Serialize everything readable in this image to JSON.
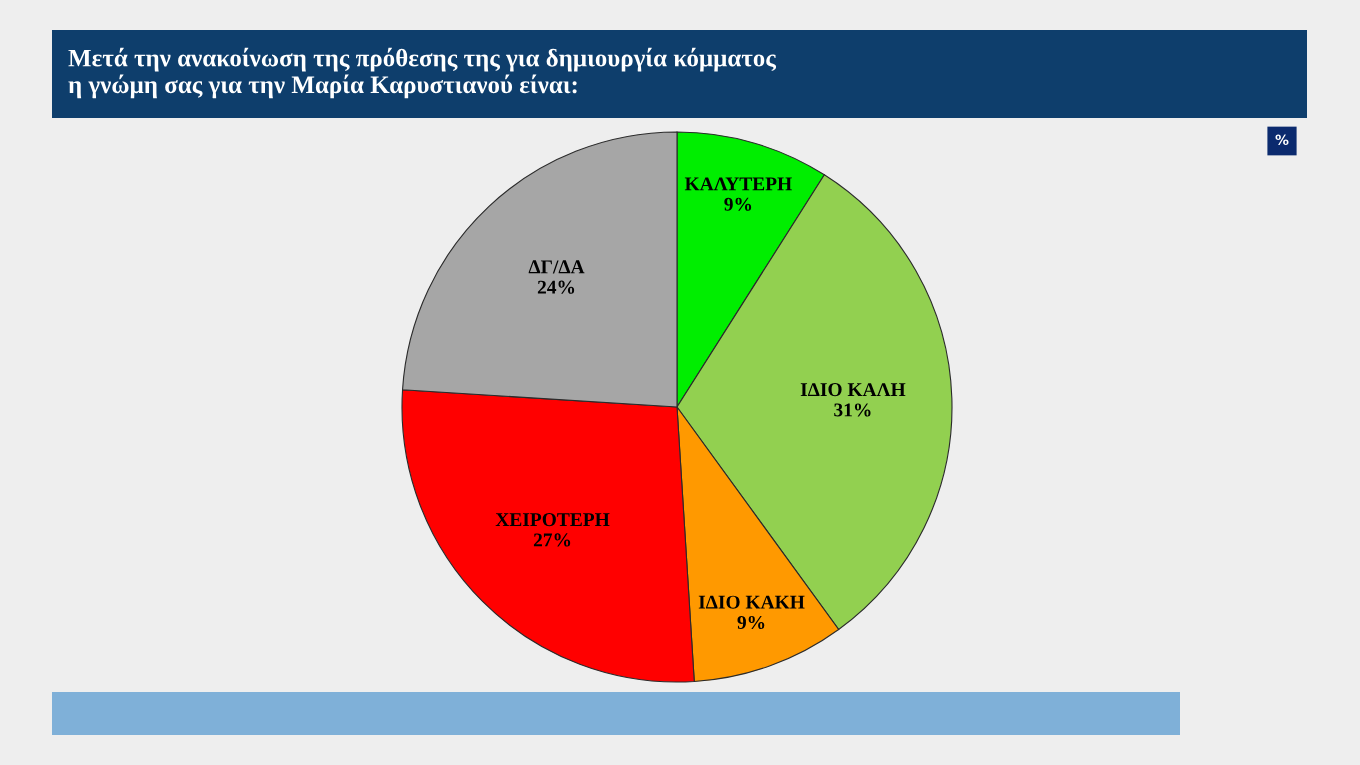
{
  "chart_data": {
    "type": "pie",
    "title": "Μετά την ανακοίνωση της πρόθεσης της για δημιουργία κόμματος\nη γνώμη σας για την Μαρία Καρυστιανού είναι:",
    "categories": [
      "ΚΑΛΥΤΕΡΗ",
      "ΙΔΙΟ ΚΑΛΗ",
      "ΙΔΙΟ ΚΑΚΗ",
      "ΧΕΙΡΟΤΕΡΗ",
      "ΔΓ/ΔΑ"
    ],
    "values": [
      9,
      31,
      9,
      27,
      24
    ],
    "colors": [
      "#00ee00",
      "#92d050",
      "#ff9900",
      "#ff0000",
      "#a6a6a6"
    ],
    "value_labels": [
      "9%",
      "31%",
      "9%",
      "27%",
      "24%"
    ],
    "annotations": [
      "%"
    ]
  }
}
